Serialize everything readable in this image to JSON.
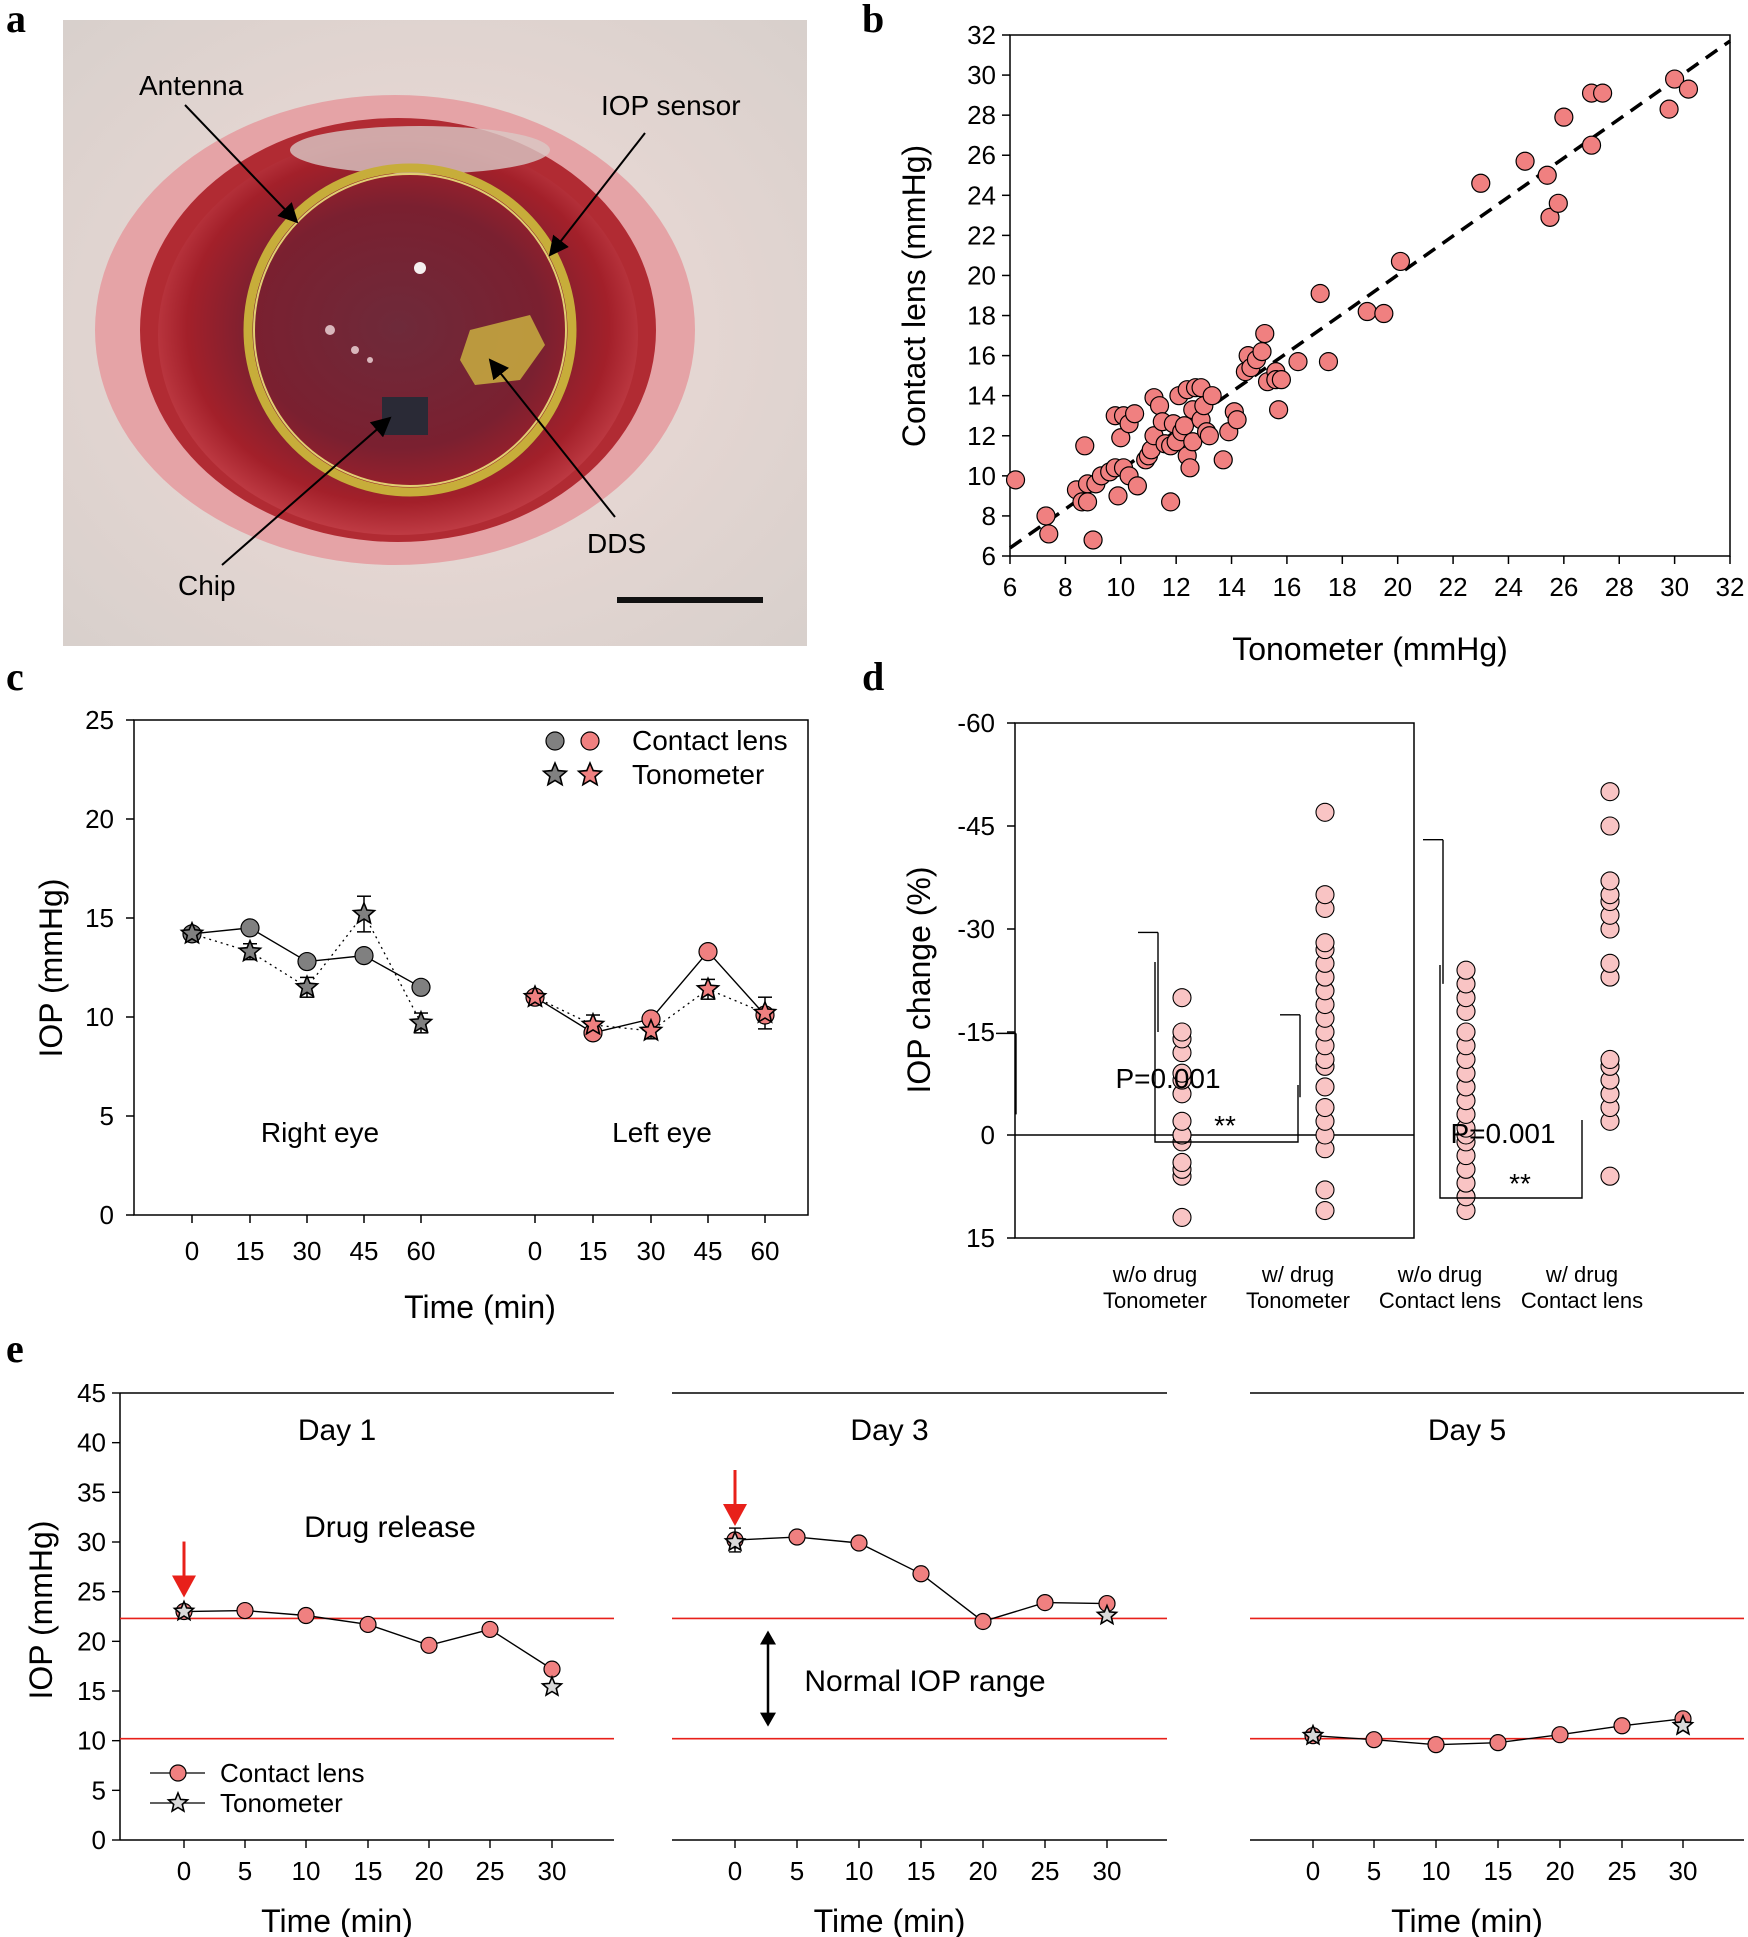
{
  "panels": {
    "a": "a",
    "b": "b",
    "c": "c",
    "d": "d",
    "e": "e"
  },
  "photo": {
    "labels": {
      "antenna": "Antenna",
      "iop_sensor": "IOP sensor",
      "chip": "Chip",
      "dds": "DDS"
    }
  },
  "colors": {
    "pink": "#f08080",
    "light_pink": "#f9c4c4",
    "gray": "#808080",
    "dark_gray": "#666666",
    "red": "#e8201a",
    "black": "#000000"
  },
  "chart_data": [
    {
      "id": "b",
      "type": "scatter",
      "xlabel": "Tonometer (mmHg)",
      "ylabel": "Contact lens (mmHg)",
      "xlim": [
        6,
        32
      ],
      "ylim": [
        6,
        32
      ],
      "xticks": [
        6,
        8,
        10,
        12,
        14,
        16,
        18,
        20,
        22,
        24,
        26,
        28,
        30,
        32
      ],
      "yticks": [
        6,
        8,
        10,
        12,
        14,
        16,
        18,
        20,
        22,
        24,
        26,
        28,
        30,
        32
      ],
      "fit_line": {
        "style": "dashed",
        "x": [
          6,
          32
        ],
        "y": [
          6.4,
          31.7
        ]
      },
      "points": [
        [
          6.2,
          9.8
        ],
        [
          7.3,
          8
        ],
        [
          7.4,
          7.1
        ],
        [
          8.4,
          9.3
        ],
        [
          8.6,
          8.7
        ],
        [
          8.7,
          11.5
        ],
        [
          8.8,
          9.6
        ],
        [
          8.8,
          8.7
        ],
        [
          9.0,
          6.8
        ],
        [
          9.1,
          9.6
        ],
        [
          9.3,
          10.0
        ],
        [
          9.6,
          10.2
        ],
        [
          9.8,
          10.4
        ],
        [
          9.8,
          13.0
        ],
        [
          9.9,
          9.0
        ],
        [
          10.0,
          11.9
        ],
        [
          10.1,
          13.0
        ],
        [
          10.1,
          10.4
        ],
        [
          10.3,
          12.6
        ],
        [
          10.3,
          10.0
        ],
        [
          10.5,
          13.1
        ],
        [
          10.6,
          9.5
        ],
        [
          10.9,
          10.8
        ],
        [
          11.0,
          11.0
        ],
        [
          11.1,
          11.3
        ],
        [
          11.2,
          13.9
        ],
        [
          11.2,
          12.0
        ],
        [
          11.4,
          13.5
        ],
        [
          11.5,
          12.7
        ],
        [
          11.6,
          11.6
        ],
        [
          11.8,
          11.5
        ],
        [
          11.8,
          8.7
        ],
        [
          11.9,
          12.6
        ],
        [
          12.0,
          11.7
        ],
        [
          12.1,
          14.0
        ],
        [
          12.2,
          12.2
        ],
        [
          12.3,
          12.5
        ],
        [
          12.4,
          14.3
        ],
        [
          12.4,
          11.0
        ],
        [
          12.5,
          10.4
        ],
        [
          12.6,
          13.3
        ],
        [
          12.6,
          11.7
        ],
        [
          12.7,
          14.4
        ],
        [
          12.9,
          12.8
        ],
        [
          12.9,
          14.4
        ],
        [
          13.0,
          13.5
        ],
        [
          13.1,
          12.2
        ],
        [
          13.2,
          12.0
        ],
        [
          13.3,
          14.0
        ],
        [
          13.7,
          10.8
        ],
        [
          13.9,
          12.2
        ],
        [
          14.1,
          13.2
        ],
        [
          14.2,
          12.8
        ],
        [
          14.5,
          15.2
        ],
        [
          14.6,
          16.0
        ],
        [
          14.7,
          15.4
        ],
        [
          14.9,
          15.8
        ],
        [
          15.1,
          16.2
        ],
        [
          15.2,
          17.1
        ],
        [
          15.3,
          14.7
        ],
        [
          15.6,
          15.2
        ],
        [
          15.6,
          14.8
        ],
        [
          15.7,
          13.3
        ],
        [
          15.8,
          14.8
        ],
        [
          16.4,
          15.7
        ],
        [
          17.2,
          19.1
        ],
        [
          17.5,
          15.7
        ],
        [
          18.9,
          18.2
        ],
        [
          19.5,
          18.1
        ],
        [
          20.1,
          20.7
        ],
        [
          23.0,
          24.6
        ],
        [
          24.6,
          25.7
        ],
        [
          25.4,
          25.0
        ],
        [
          25.5,
          22.9
        ],
        [
          25.8,
          23.6
        ],
        [
          26.0,
          27.9
        ],
        [
          27.0,
          26.5
        ],
        [
          27.0,
          29.1
        ],
        [
          27.4,
          29.1
        ],
        [
          29.8,
          28.3
        ],
        [
          30.0,
          29.8
        ],
        [
          30.5,
          29.3
        ]
      ]
    },
    {
      "id": "c",
      "type": "line",
      "xlabel": "Time (min)",
      "ylabel": "IOP (mmHg)",
      "ylim": [
        0,
        25
      ],
      "yticks": [
        0,
        5,
        10,
        15,
        20,
        25
      ],
      "x": [
        0,
        15,
        30,
        45,
        60
      ],
      "groups": [
        {
          "name": "Right eye",
          "series": [
            {
              "name": "Contact lens",
              "values": [
                14.2,
                14.5,
                12.8,
                13.1,
                11.5
              ]
            },
            {
              "name": "Tonometer",
              "values": [
                14.2,
                13.3,
                11.5,
                15.2,
                9.7
              ],
              "errors": [
                0.3,
                0.4,
                0.5,
                0.9,
                0.5
              ]
            }
          ]
        },
        {
          "name": "Left eye",
          "series": [
            {
              "name": "Contact lens",
              "values": [
                11.0,
                9.2,
                9.9,
                13.3,
                10.1
              ]
            },
            {
              "name": "Tonometer",
              "values": [
                11.0,
                9.6,
                9.3,
                11.4,
                10.2
              ],
              "errors": [
                0.2,
                0.5,
                0.4,
                0.5,
                0.8
              ]
            }
          ]
        }
      ],
      "legend": [
        "Contact lens",
        "Tonometer"
      ],
      "legend_position": "top-right"
    },
    {
      "id": "d",
      "type": "bar",
      "ylabel": "IOP change (%)",
      "ylim": [
        -60,
        15
      ],
      "yticks": [
        15,
        0,
        -15,
        -30,
        -45,
        -60
      ],
      "categories": [
        {
          "l1": "w/o drug",
          "l2": "Tonometer"
        },
        {
          "l1": "w/ drug",
          "l2": "Tonometer"
        },
        {
          "l1": "w/o drug",
          "l2": "Contact lens"
        },
        {
          "l1": "w/ drug",
          "l2": "Contact lens"
        }
      ],
      "values": [
        -3.0,
        -15.0,
        -5.5,
        -22.0
      ],
      "errors": [
        11.8,
        14.5,
        12.0,
        21.0
      ],
      "points": [
        [
          12,
          6,
          5,
          4,
          1,
          0,
          0,
          -2,
          -6,
          -8,
          -9,
          -12,
          -14,
          -15,
          -20
        ],
        [
          11,
          8,
          2,
          0,
          -2,
          -4,
          -7,
          -10,
          -11,
          -13,
          -15,
          -17,
          -19,
          -21,
          -23,
          -25,
          -27,
          -28,
          -33,
          -35,
          -47
        ],
        [
          11,
          9,
          7,
          5,
          3,
          1,
          0,
          -1,
          -3,
          -5,
          -7,
          -9,
          -11,
          -13,
          -15,
          -18,
          -20,
          -22,
          -24
        ],
        [
          6,
          -2,
          -4,
          -6,
          -8,
          -10,
          -11,
          -23,
          -25,
          -30,
          -32,
          -34,
          -35,
          -37,
          -45,
          -50
        ]
      ],
      "stats": [
        {
          "p_label": "P=0.001",
          "stars": "**"
        },
        {
          "p_label": "P=0.001",
          "stars": "**"
        }
      ]
    },
    {
      "id": "e",
      "type": "line",
      "xlabel": "Time (min)",
      "ylabel": "IOP (mmHg)",
      "ylim": [
        0,
        45
      ],
      "yticks": [
        0,
        5,
        10,
        15,
        20,
        25,
        30,
        35,
        40,
        45
      ],
      "x": [
        0,
        5,
        10,
        15,
        20,
        25,
        30
      ],
      "normal_range": [
        10.2,
        22.3
      ],
      "days": [
        {
          "title": "Day 1",
          "contact_lens": [
            23.0,
            23.1,
            22.6,
            21.7,
            19.6,
            21.2,
            17.2
          ],
          "tonometer": {
            "0": 23.0,
            "30": 15.4
          }
        },
        {
          "title": "Day 3",
          "contact_lens": [
            30.2,
            30.5,
            29.9,
            26.8,
            22.0,
            23.9,
            23.8
          ],
          "tonometer": {
            "0": 30.0,
            "30": 22.6
          }
        },
        {
          "title": "Day 5",
          "contact_lens": [
            10.5,
            10.1,
            9.6,
            9.8,
            10.6,
            11.5,
            12.2
          ],
          "tonometer": {
            "0": 10.5,
            "30": 11.5
          }
        }
      ],
      "annotations": {
        "drug_release": "Drug release",
        "normal_range": "Normal IOP range"
      },
      "legend": [
        "Contact lens",
        "Tonometer"
      ],
      "legend_position": "bottom-left"
    }
  ]
}
